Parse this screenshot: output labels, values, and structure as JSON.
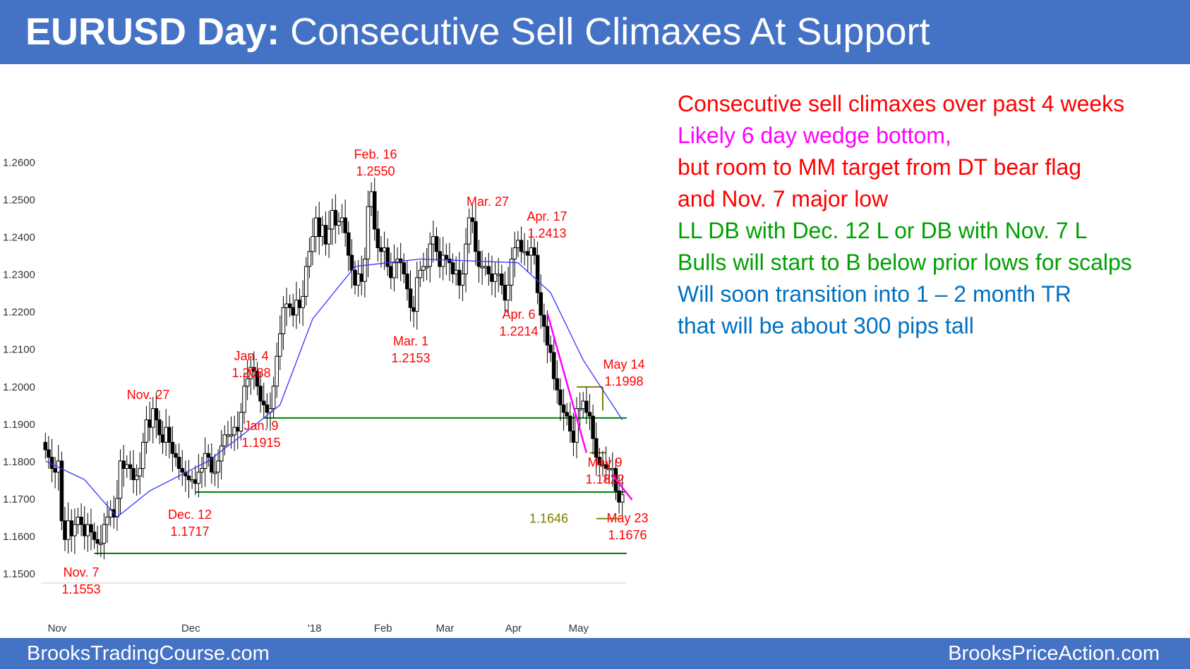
{
  "title": {
    "bold": "EURUSD Day:",
    "rest": " Consecutive Sell Climaxes At Support"
  },
  "footer": {
    "left": "BrooksTradingCourse.com",
    "right": "BrooksPriceAction.com"
  },
  "notes": [
    {
      "text": "Consecutive sell climaxes over past 4 weeks",
      "color": "#ff0000"
    },
    {
      "text": "Likely 6 day wedge bottom,",
      "color": "#ff00ff"
    },
    {
      "text": "but room to MM target from DT bear flag",
      "color": "#ff0000"
    },
    {
      "text": "and Nov. 7 major low",
      "color": "#ff0000"
    },
    {
      "text": "LL DB with Dec. 12 L or DB with Nov. 7 L",
      "color": "#00a000"
    },
    {
      "text": "Bulls will start to B below prior lows for scalps",
      "color": "#00a000"
    },
    {
      "text": "Will soon transition into 1 – 2 month TR",
      "color": "#0070c0"
    },
    {
      "text": "that will be about 300 pips tall",
      "color": "#0070c0"
    }
  ],
  "colors": {
    "title_bar": "#4472c4",
    "ema": "#3333ff",
    "support": "#008000",
    "annotation": "#ff0000",
    "wedge": "#ff00ff",
    "target": "#808000"
  },
  "chart_data": {
    "type": "candlestick",
    "title": "",
    "ylim": [
      1.147,
      1.268
    ],
    "y_ticks": [
      "1.2600",
      "1.2500",
      "1.2400",
      "1.2300",
      "1.2200",
      "1.2100",
      "1.2000",
      "1.1900",
      "1.1800",
      "1.1700",
      "1.1600",
      "1.1500"
    ],
    "x_ticks": [
      "Nov",
      "Dec",
      "'18",
      "Feb",
      "Mar",
      "Apr",
      "May"
    ],
    "grid": false,
    "closes": [
      1.183,
      1.181,
      1.178,
      1.177,
      1.18,
      1.164,
      1.159,
      1.164,
      1.16,
      1.163,
      1.165,
      1.163,
      1.16,
      1.163,
      1.161,
      1.159,
      1.158,
      1.158,
      1.163,
      1.165,
      1.167,
      1.165,
      1.17,
      1.18,
      1.178,
      1.179,
      1.178,
      1.175,
      1.176,
      1.178,
      1.185,
      1.191,
      1.189,
      1.194,
      1.191,
      1.187,
      1.185,
      1.189,
      1.185,
      1.182,
      1.181,
      1.178,
      1.177,
      1.176,
      1.175,
      1.175,
      1.174,
      1.177,
      1.178,
      1.182,
      1.181,
      1.177,
      1.177,
      1.18,
      1.184,
      1.187,
      1.187,
      1.187,
      1.189,
      1.188,
      1.193,
      1.2,
      1.202,
      1.205,
      1.204,
      1.2,
      1.196,
      1.195,
      1.193,
      1.194,
      1.2,
      1.208,
      1.214,
      1.221,
      1.222,
      1.221,
      1.219,
      1.223,
      1.221,
      1.224,
      1.232,
      1.236,
      1.24,
      1.245,
      1.24,
      1.243,
      1.238,
      1.242,
      1.247,
      1.243,
      1.244,
      1.245,
      1.241,
      1.235,
      1.231,
      1.227,
      1.23,
      1.228,
      1.234,
      1.248,
      1.252,
      1.242,
      1.237,
      1.236,
      1.237,
      1.232,
      1.229,
      1.233,
      1.234,
      1.233,
      1.23,
      1.226,
      1.221,
      1.22,
      1.229,
      1.231,
      1.232,
      1.232,
      1.238,
      1.24,
      1.236,
      1.232,
      1.235,
      1.234,
      1.233,
      1.23,
      1.231,
      1.227,
      1.23,
      1.238,
      1.245,
      1.244,
      1.236,
      1.232,
      1.232,
      1.232,
      1.23,
      1.228,
      1.23,
      1.23,
      1.227,
      1.223,
      1.227,
      1.234,
      1.237,
      1.239,
      1.236,
      1.236,
      1.235,
      1.237,
      1.235,
      1.225,
      1.219,
      1.216,
      1.211,
      1.209,
      1.202,
      1.199,
      1.195,
      1.193,
      1.192,
      1.188,
      1.185,
      1.194,
      1.194,
      1.196,
      1.193,
      1.192,
      1.186,
      1.181,
      1.179,
      1.179,
      1.178,
      1.178,
      1.178,
      1.172,
      1.169,
      1.171
    ],
    "ema20_anchors": [
      [
        0,
        1.18
      ],
      [
        12,
        1.175
      ],
      [
        22,
        1.165
      ],
      [
        32,
        1.172
      ],
      [
        50,
        1.18
      ],
      [
        62,
        1.188
      ],
      [
        72,
        1.195
      ],
      [
        82,
        1.218
      ],
      [
        95,
        1.232
      ],
      [
        115,
        1.234
      ],
      [
        145,
        1.233
      ],
      [
        155,
        1.225
      ],
      [
        165,
        1.207
      ],
      [
        180,
        1.187
      ]
    ],
    "support_lines": [
      {
        "value": 1.1915,
        "from_bar": 67
      },
      {
        "value": 1.1717,
        "from_bar": 46
      },
      {
        "value": 1.1553,
        "from_bar": 15
      }
    ],
    "target_line": {
      "value": 1.1646,
      "label": "1.1646"
    },
    "annotations": [
      {
        "date": "Nov. 27",
        "price": "",
        "bar": 33
      },
      {
        "date": "Nov. 7",
        "price": "1.1553",
        "bar": 15
      },
      {
        "date": "Dec. 12",
        "price": "1.1717",
        "bar": 46
      },
      {
        "date": "Jan. 4",
        "price": "1.2088",
        "bar": 63
      },
      {
        "date": "Jan. 9",
        "price": "1.1915",
        "bar": 67
      },
      {
        "date": "Feb. 16",
        "price": "1.2550",
        "bar": 100
      },
      {
        "date": "Mar. 1",
        "price": "1.2153",
        "bar": 108
      },
      {
        "date": "Mar. 27",
        "price": "",
        "bar": 127
      },
      {
        "date": "Apr. 6",
        "price": "1.2214",
        "bar": 135
      },
      {
        "date": "Apr. 17",
        "price": "1.2413",
        "bar": 144
      },
      {
        "date": "May 14",
        "price": "1.1998",
        "bar": 169
      },
      {
        "date": "May 9",
        "price": "1.1822",
        "bar": 164
      },
      {
        "date": "May 23",
        "price": "1.1676",
        "bar": 180
      }
    ]
  }
}
